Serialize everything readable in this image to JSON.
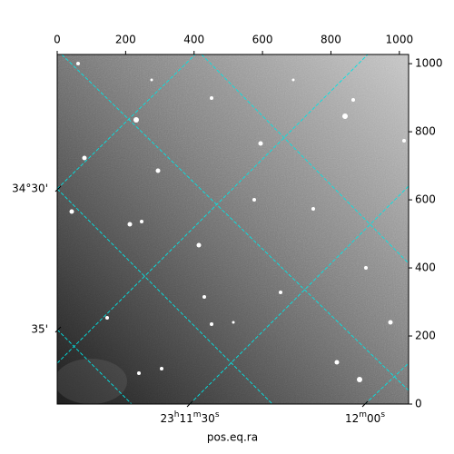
{
  "chart_data": {
    "type": "image",
    "xlabel": "pos.eq.ra",
    "xlim": [
      0,
      1027
    ],
    "xticks": [
      0,
      200,
      400,
      600,
      800,
      1000
    ],
    "ylim": [
      0,
      1027
    ],
    "yticks": [
      0,
      200,
      400,
      600,
      800,
      1000
    ],
    "ra_ticks": [
      "23h11m30s",
      "12m00s"
    ],
    "dec_ticks": [
      "34°30'",
      "35'"
    ],
    "grid_color": "#00e5e5"
  }
}
